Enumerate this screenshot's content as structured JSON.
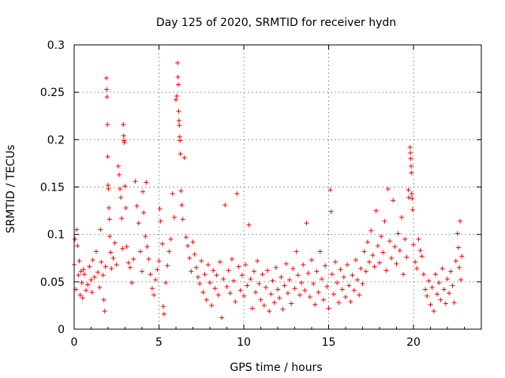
{
  "chart_data": {
    "type": "scatter",
    "title": "Day 125 of 2020, SRMTID for receiver hydn",
    "xlabel": "GPS time / hours",
    "ylabel": "SRMTID / TECUs",
    "xlim": [
      0,
      24
    ],
    "ylim": [
      0,
      0.3
    ],
    "xticks": [
      0,
      5,
      10,
      15,
      20
    ],
    "yticks": [
      0,
      0.05,
      0.1,
      0.15,
      0.2,
      0.25,
      0.3
    ],
    "xtick_labels": [
      "0",
      "5",
      "10",
      "15",
      "20"
    ],
    "ytick_labels": [
      "0",
      "0.05",
      "0.1",
      "0.15",
      "0.2",
      "0.25",
      "0.3"
    ],
    "grid": true,
    "marker": "+",
    "color": "#ff0000",
    "series": [
      {
        "name": "SRMTID",
        "points": [
          [
            0.0,
            0.068
          ],
          [
            0.05,
            0.095
          ],
          [
            0.1,
            0.042
          ],
          [
            0.15,
            0.105
          ],
          [
            0.2,
            0.088
          ],
          [
            0.25,
            0.057
          ],
          [
            0.3,
            0.072
          ],
          [
            0.35,
            0.036
          ],
          [
            0.4,
            0.061
          ],
          [
            0.45,
            0.049
          ],
          [
            0.5,
            0.033
          ],
          [
            0.55,
            0.063
          ],
          [
            0.6,
            0.058
          ],
          [
            0.7,
            0.041
          ],
          [
            0.8,
            0.047
          ],
          [
            0.9,
            0.066
          ],
          [
            1.0,
            0.052
          ],
          [
            1.05,
            0.039
          ],
          [
            1.1,
            0.073
          ],
          [
            1.2,
            0.055
          ],
          [
            1.3,
            0.082
          ],
          [
            1.4,
            0.06
          ],
          [
            1.5,
            0.044
          ],
          [
            1.55,
            0.105
          ],
          [
            1.6,
            0.071
          ],
          [
            1.7,
            0.057
          ],
          [
            1.75,
            0.031
          ],
          [
            1.8,
            0.019
          ],
          [
            1.85,
            0.066
          ],
          [
            1.9,
            0.265
          ],
          [
            1.92,
            0.253
          ],
          [
            1.94,
            0.245
          ],
          [
            1.96,
            0.216
          ],
          [
            1.98,
            0.182
          ],
          [
            2.0,
            0.152
          ],
          [
            2.02,
            0.148
          ],
          [
            2.05,
            0.128
          ],
          [
            2.08,
            0.116
          ],
          [
            2.1,
            0.098
          ],
          [
            2.15,
            0.081
          ],
          [
            2.2,
            0.064
          ],
          [
            2.3,
            0.075
          ],
          [
            2.4,
            0.091
          ],
          [
            2.5,
            0.068
          ],
          [
            2.6,
            0.172
          ],
          [
            2.65,
            0.163
          ],
          [
            2.7,
            0.148
          ],
          [
            2.75,
            0.139
          ],
          [
            2.8,
            0.117
          ],
          [
            2.85,
            0.085
          ],
          [
            2.9,
            0.216
          ],
          [
            2.92,
            0.204
          ],
          [
            2.94,
            0.199
          ],
          [
            2.96,
            0.197
          ],
          [
            3.0,
            0.151
          ],
          [
            3.05,
            0.128
          ],
          [
            3.1,
            0.087
          ],
          [
            3.2,
            0.07
          ],
          [
            3.3,
            0.065
          ],
          [
            3.4,
            0.049
          ],
          [
            3.5,
            0.074
          ],
          [
            3.6,
            0.156
          ],
          [
            3.7,
            0.13
          ],
          [
            3.8,
            0.112
          ],
          [
            3.9,
            0.082
          ],
          [
            4.0,
            0.061
          ],
          [
            4.05,
            0.145
          ],
          [
            4.1,
            0.123
          ],
          [
            4.2,
            0.098
          ],
          [
            4.25,
            0.155
          ],
          [
            4.3,
            0.087
          ],
          [
            4.4,
            0.074
          ],
          [
            4.5,
            0.058
          ],
          [
            4.6,
            0.043
          ],
          [
            4.7,
            0.036
          ],
          [
            4.8,
            0.052
          ],
          [
            4.9,
            0.063
          ],
          [
            5.0,
            0.072
          ],
          [
            5.05,
            0.127
          ],
          [
            5.1,
            0.114
          ],
          [
            5.2,
            0.09
          ],
          [
            5.25,
            0.024
          ],
          [
            5.3,
            0.016
          ],
          [
            5.4,
            0.049
          ],
          [
            5.5,
            0.067
          ],
          [
            5.6,
            0.082
          ],
          [
            5.7,
            0.095
          ],
          [
            5.8,
            0.143
          ],
          [
            5.9,
            0.118
          ],
          [
            6.0,
            0.242
          ],
          [
            6.05,
            0.246
          ],
          [
            6.1,
            0.281
          ],
          [
            6.12,
            0.266
          ],
          [
            6.14,
            0.258
          ],
          [
            6.16,
            0.23
          ],
          [
            6.18,
            0.22
          ],
          [
            6.2,
            0.215
          ],
          [
            6.22,
            0.203
          ],
          [
            6.24,
            0.199
          ],
          [
            6.26,
            0.185
          ],
          [
            6.3,
            0.146
          ],
          [
            6.35,
            0.131
          ],
          [
            6.4,
            0.116
          ],
          [
            6.5,
            0.181
          ],
          [
            6.6,
            0.097
          ],
          [
            6.7,
            0.088
          ],
          [
            6.8,
            0.075
          ],
          [
            6.9,
            0.061
          ],
          [
            7.0,
            0.092
          ],
          [
            7.1,
            0.079
          ],
          [
            7.2,
            0.065
          ],
          [
            7.3,
            0.055
          ],
          [
            7.4,
            0.048
          ],
          [
            7.5,
            0.072
          ],
          [
            7.6,
            0.039
          ],
          [
            7.7,
            0.058
          ],
          [
            7.8,
            0.031
          ],
          [
            7.9,
            0.068
          ],
          [
            8.0,
            0.049
          ],
          [
            8.1,
            0.025
          ],
          [
            8.2,
            0.062
          ],
          [
            8.3,
            0.043
          ],
          [
            8.4,
            0.057
          ],
          [
            8.5,
            0.036
          ],
          [
            8.6,
            0.071
          ],
          [
            8.7,
            0.012
          ],
          [
            8.8,
            0.053
          ],
          [
            8.9,
            0.131
          ],
          [
            9.0,
            0.045
          ],
          [
            9.1,
            0.062
          ],
          [
            9.2,
            0.038
          ],
          [
            9.3,
            0.074
          ],
          [
            9.4,
            0.051
          ],
          [
            9.5,
            0.029
          ],
          [
            9.6,
            0.143
          ],
          [
            9.7,
            0.066
          ],
          [
            9.8,
            0.041
          ],
          [
            9.9,
            0.057
          ],
          [
            10.0,
            0.035
          ],
          [
            10.1,
            0.068
          ],
          [
            10.2,
            0.046
          ],
          [
            10.3,
            0.11
          ],
          [
            10.4,
            0.053
          ],
          [
            10.5,
            0.022
          ],
          [
            10.6,
            0.061
          ],
          [
            10.7,
            0.039
          ],
          [
            10.8,
            0.072
          ],
          [
            10.9,
            0.048
          ],
          [
            11.0,
            0.031
          ],
          [
            11.1,
            0.058
          ],
          [
            11.2,
            0.025
          ],
          [
            11.3,
            0.044
          ],
          [
            11.4,
            0.062
          ],
          [
            11.5,
            0.019
          ],
          [
            11.6,
            0.037
          ],
          [
            11.7,
            0.051
          ],
          [
            11.8,
            0.028
          ],
          [
            11.9,
            0.065
          ],
          [
            12.0,
            0.042
          ],
          [
            12.1,
            0.033
          ],
          [
            12.2,
            0.055
          ],
          [
            12.3,
            0.021
          ],
          [
            12.4,
            0.046
          ],
          [
            12.5,
            0.069
          ],
          [
            12.6,
            0.038
          ],
          [
            12.7,
            0.052
          ],
          [
            12.8,
            0.027
          ],
          [
            12.9,
            0.064
          ],
          [
            13.0,
            0.043
          ],
          [
            13.1,
            0.082
          ],
          [
            13.2,
            0.057
          ],
          [
            13.3,
            0.036
          ],
          [
            13.4,
            0.049
          ],
          [
            13.5,
            0.068
          ],
          [
            13.6,
            0.041
          ],
          [
            13.7,
            0.112
          ],
          [
            13.8,
            0.059
          ],
          [
            13.9,
            0.034
          ],
          [
            14.0,
            0.073
          ],
          [
            14.1,
            0.048
          ],
          [
            14.2,
            0.026
          ],
          [
            14.3,
            0.061
          ],
          [
            14.4,
            0.039
          ],
          [
            14.5,
            0.082
          ],
          [
            14.6,
            0.053
          ],
          [
            14.7,
            0.031
          ],
          [
            14.8,
            0.067
          ],
          [
            14.9,
            0.045
          ],
          [
            15.0,
            0.022
          ],
          [
            15.1,
            0.147
          ],
          [
            15.15,
            0.124
          ],
          [
            15.2,
            0.058
          ],
          [
            15.3,
            0.037
          ],
          [
            15.4,
            0.071
          ],
          [
            15.5,
            0.049
          ],
          [
            15.6,
            0.028
          ],
          [
            15.7,
            0.063
          ],
          [
            15.8,
            0.042
          ],
          [
            15.9,
            0.055
          ],
          [
            16.0,
            0.034
          ],
          [
            16.1,
            0.068
          ],
          [
            16.2,
            0.046
          ],
          [
            16.3,
            0.029
          ],
          [
            16.4,
            0.057
          ],
          [
            16.5,
            0.041
          ],
          [
            16.6,
            0.073
          ],
          [
            16.7,
            0.052
          ],
          [
            16.8,
            0.036
          ],
          [
            16.9,
            0.064
          ],
          [
            17.0,
            0.048
          ],
          [
            17.1,
            0.082
          ],
          [
            17.2,
            0.061
          ],
          [
            17.3,
            0.092
          ],
          [
            17.4,
            0.071
          ],
          [
            17.5,
            0.104
          ],
          [
            17.6,
            0.078
          ],
          [
            17.7,
            0.066
          ],
          [
            17.8,
            0.125
          ],
          [
            17.9,
            0.088
          ],
          [
            18.0,
            0.07
          ],
          [
            18.1,
            0.098
          ],
          [
            18.2,
            0.081
          ],
          [
            18.3,
            0.114
          ],
          [
            18.4,
            0.062
          ],
          [
            18.5,
            0.148
          ],
          [
            18.6,
            0.093
          ],
          [
            18.7,
            0.075
          ],
          [
            18.8,
            0.136
          ],
          [
            18.9,
            0.087
          ],
          [
            19.0,
            0.069
          ],
          [
            19.1,
            0.101
          ],
          [
            19.2,
            0.083
          ],
          [
            19.3,
            0.118
          ],
          [
            19.4,
            0.058
          ],
          [
            19.5,
            0.095
          ],
          [
            19.6,
            0.076
          ],
          [
            19.7,
            0.147
          ],
          [
            19.72,
            0.139
          ],
          [
            19.8,
            0.192
          ],
          [
            19.82,
            0.186
          ],
          [
            19.84,
            0.18
          ],
          [
            19.86,
            0.172
          ],
          [
            19.88,
            0.165
          ],
          [
            19.9,
            0.143
          ],
          [
            19.92,
            0.138
          ],
          [
            19.95,
            0.126
          ],
          [
            20.0,
            0.089
          ],
          [
            20.1,
            0.071
          ],
          [
            20.2,
            0.064
          ],
          [
            20.3,
            0.095
          ],
          [
            20.4,
            0.083
          ],
          [
            20.5,
            0.077
          ],
          [
            20.6,
            0.058
          ],
          [
            20.7,
            0.042
          ],
          [
            20.8,
            0.035
          ],
          [
            20.9,
            0.051
          ],
          [
            21.0,
            0.026
          ],
          [
            21.1,
            0.044
          ],
          [
            21.2,
            0.019
          ],
          [
            21.3,
            0.058
          ],
          [
            21.4,
            0.037
          ],
          [
            21.5,
            0.049
          ],
          [
            21.6,
            0.031
          ],
          [
            21.7,
            0.064
          ],
          [
            21.8,
            0.042
          ],
          [
            21.9,
            0.027
          ],
          [
            22.0,
            0.053
          ],
          [
            22.1,
            0.038
          ],
          [
            22.2,
            0.061
          ],
          [
            22.3,
            0.046
          ],
          [
            22.4,
            0.028
          ],
          [
            22.5,
            0.072
          ],
          [
            22.6,
            0.101
          ],
          [
            22.65,
            0.086
          ],
          [
            22.7,
            0.065
          ],
          [
            22.75,
            0.114
          ],
          [
            22.8,
            0.052
          ],
          [
            22.85,
            0.077
          ]
        ]
      }
    ]
  }
}
